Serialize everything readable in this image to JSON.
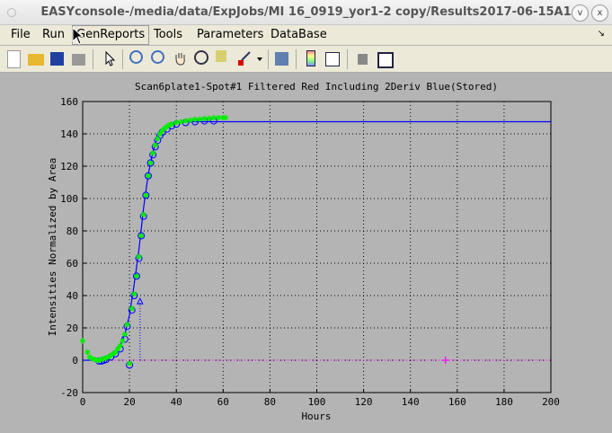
{
  "window": {
    "title": "EASYconsole-/media/data/ExpJobs/MI 16_0919_yor1-2 copy/Results2017-06-15A1",
    "minimize": "v",
    "close": "x"
  },
  "menu": [
    "File",
    "Run",
    "GenReports",
    "Tools",
    "Parameters",
    "DataBase"
  ],
  "menu_selected": "GenReports",
  "toolbar": [
    "new-file-icon",
    "open-folder-icon",
    "save-icon",
    "print-icon",
    "pointer-icon",
    "zoom-in-icon",
    "zoom-out-icon",
    "pan-hand-icon",
    "rotate-icon",
    "data-cursor-icon",
    "brush-icon",
    "dropdown-arrow-icon",
    "link-icon",
    "colorbar-icon",
    "legend-icon",
    "hide-plot-tools-icon",
    "show-plot-tools-icon"
  ],
  "colors": {
    "fit": "#0000ff",
    "raw": "#00ee00",
    "circles": "#0000ff",
    "marker": "#ff00ff"
  },
  "chart_data": {
    "type": "scatter",
    "title": "Scan6plate1-Spot#1 Filtered Red Including 2Deriv Blue(Stored)",
    "xlabel": "Hours",
    "ylabel": "Intensities Normalized by Area",
    "xlim": [
      0,
      200
    ],
    "ylim": [
      -20,
      160
    ],
    "grid": true,
    "xticks": [
      0,
      20,
      40,
      60,
      80,
      100,
      120,
      140,
      160,
      180,
      200
    ],
    "yticks": [
      -20,
      0,
      20,
      40,
      60,
      80,
      100,
      120,
      140,
      160
    ],
    "raw_stars": {
      "x": [
        0,
        2,
        3,
        4,
        5,
        6,
        7,
        8,
        9,
        10,
        11,
        12,
        13,
        14,
        15,
        16,
        17,
        18,
        19,
        20,
        21,
        22,
        23,
        24,
        25,
        26,
        27,
        28,
        29,
        30,
        31,
        32,
        33,
        34,
        35,
        36,
        37,
        38,
        40,
        42,
        44,
        46,
        48,
        50,
        52,
        54,
        56,
        58,
        60,
        61
      ],
      "y": [
        12,
        5,
        2,
        1,
        0.5,
        0,
        0,
        0.5,
        1,
        1.5,
        2,
        3,
        4,
        5,
        7,
        9,
        12,
        16,
        22,
        -2,
        32,
        41,
        52,
        64,
        77,
        90,
        102,
        114,
        122,
        128,
        133,
        137,
        140,
        142,
        143.5,
        144.5,
        145.5,
        146,
        147,
        147.5,
        148,
        148.5,
        149,
        149,
        149.5,
        149.5,
        150,
        150,
        150,
        150
      ]
    },
    "circles": {
      "x": [
        7,
        8,
        9,
        10,
        12,
        14,
        16,
        18,
        19,
        20,
        21,
        22,
        23,
        24,
        25,
        26,
        27,
        28,
        29,
        30,
        31,
        32,
        33,
        34,
        36,
        38,
        40,
        44,
        48,
        52,
        56
      ],
      "y": [
        -0.5,
        -0.5,
        0,
        0.5,
        2,
        4,
        7,
        13,
        21,
        -3,
        31,
        40,
        52,
        63,
        77,
        89,
        102,
        114,
        122,
        127,
        132,
        136,
        139,
        141,
        143,
        145,
        146,
        147,
        147.5,
        148,
        148
      ]
    },
    "fit": {
      "x": [
        0,
        6,
        10,
        14,
        16,
        18,
        20,
        22,
        24,
        26,
        28,
        30,
        32,
        34,
        36,
        40,
        45,
        50,
        200
      ],
      "y": [
        0,
        0,
        1,
        5,
        9,
        16,
        28,
        47,
        68,
        94,
        115,
        129,
        138,
        142,
        145,
        147,
        147.5,
        147.5,
        147.5
      ]
    },
    "lag_marker": {
      "x": 24.5,
      "y": 36
    },
    "extra_marker": {
      "x": 155,
      "y": 0
    }
  }
}
